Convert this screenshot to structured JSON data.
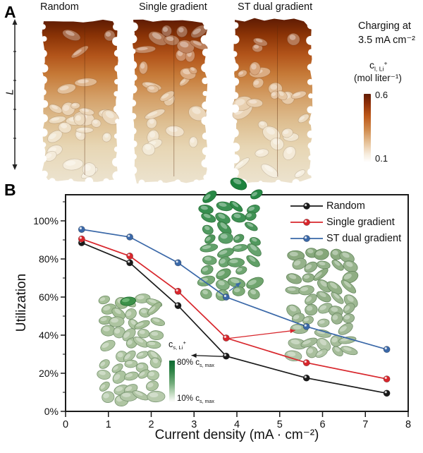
{
  "figure": {
    "panel_a": {
      "label": "A",
      "structures": [
        {
          "label": "Random"
        },
        {
          "label": "Single gradient"
        },
        {
          "label": "ST dual gradient"
        }
      ],
      "length_axis_label": "L",
      "charging_note_line1": "Charging at",
      "charging_note_line2": "3.5 mA cm⁻²",
      "liquid_colorbar": {
        "symbol_main": "c",
        "symbol_sub": "l, Li",
        "symbol_sup": "+",
        "unit": "(mol liter⁻¹)",
        "max": "0.6",
        "min": "0.1",
        "top_color": "#611c04",
        "bottom_color": "#ffffff"
      }
    },
    "panel_b": {
      "label": "B",
      "solid_scale": {
        "symbol_main": "c",
        "symbol_sub": "s, Li",
        "symbol_sup": "+",
        "max_prefix": "80% c",
        "max_sub": "s, max",
        "min_prefix": "10% c",
        "min_sub": "s, max",
        "top_color": "#0e6a33",
        "bottom_color": "#ffffff"
      }
    }
  },
  "chart_data": {
    "type": "line",
    "title": "",
    "xlabel": "Current density (mA · cm⁻²)",
    "ylabel": "Utilization",
    "x": [
      0.375,
      1.5,
      2.625,
      3.75,
      5.625,
      7.5
    ],
    "series": [
      {
        "name": "Random",
        "color": "#1a1a1a",
        "values_pct": [
          88.5,
          78,
          55.5,
          29,
          17.5,
          9.5
        ]
      },
      {
        "name": "Single gradient",
        "color": "#d8262c",
        "values_pct": [
          90.5,
          81.5,
          63,
          38.5,
          25.5,
          17
        ]
      },
      {
        "name": "ST dual gradient",
        "color": "#3a68a8",
        "values_pct": [
          95.5,
          91.5,
          78,
          60,
          44.5,
          32.5
        ]
      }
    ],
    "xlim": [
      0,
      8
    ],
    "ylim_pct": [
      0,
      113.7
    ],
    "x_ticks": [
      0,
      1,
      2,
      3,
      4,
      5,
      6,
      7,
      8
    ],
    "y_ticks": [
      {
        "pct": 0,
        "label": "0%"
      },
      {
        "pct": 20,
        "label": "20%"
      },
      {
        "pct": 40,
        "label": "40%"
      },
      {
        "pct": 60,
        "label": "60%"
      },
      {
        "pct": 80,
        "label": "80%"
      },
      {
        "pct": 100,
        "label": "100%"
      }
    ],
    "y_minor_ticks_pct": [
      10,
      30,
      50,
      70,
      90,
      110
    ],
    "grid": false,
    "legend_position": "top-right",
    "annotations": [
      {
        "color": "#1a1a1a",
        "from": [
          3.67,
          28.8
        ],
        "to": [
          2.94,
          29.4
        ]
      },
      {
        "color": "#d8262c",
        "from": [
          3.8,
          38.3
        ],
        "to": [
          5.36,
          42.5
        ]
      },
      {
        "color": "#3a68a8",
        "from": [
          3.82,
          63.2
        ],
        "to": [
          4.09,
          67.6
        ]
      }
    ]
  }
}
